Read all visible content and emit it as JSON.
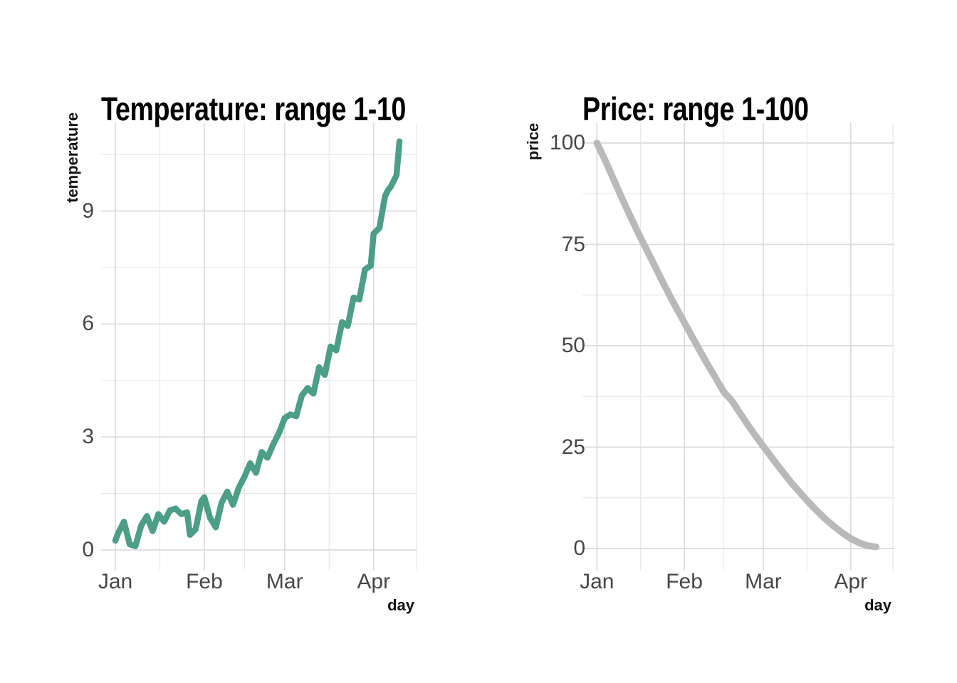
{
  "page": {
    "background": "#ffffff"
  },
  "colors": {
    "title_text": "#000000",
    "axis_title_text": "#141414",
    "tick_text": "#474747",
    "grid_major": "#dbdbdb",
    "grid_minor": "#e7e7e7",
    "temperature_line": "#4c9e87",
    "price_line": "#b9b9b9"
  },
  "chart_data": [
    {
      "type": "line",
      "title": "Temperature: range 1-10",
      "xlabel": "day",
      "ylabel": "temperature",
      "x_axis": {
        "tick_labels": [
          "Jan",
          "Feb",
          "Mar",
          "Apr"
        ],
        "tick_days": [
          1,
          32,
          60,
          91
        ],
        "minor_days": [
          16.5,
          46,
          75.5,
          106
        ],
        "domain_days": [
          -4,
          110
        ]
      },
      "y_axis": {
        "ticks": [
          0,
          3,
          6,
          9
        ],
        "minor": [
          1.5,
          4.5,
          7.5,
          10.5
        ],
        "domain": [
          -0.5,
          11.4
        ]
      },
      "grid": true,
      "legend": "none",
      "line_color": "#4c9e87",
      "line_width": 8.5,
      "series": [
        {
          "name": "temperature",
          "x": [
            1,
            2,
            4,
            6,
            8,
            10,
            12,
            14,
            16,
            18,
            20,
            22,
            24,
            26,
            27,
            29,
            31,
            32,
            34,
            36,
            38,
            40,
            42,
            44,
            46,
            48,
            50,
            52,
            54,
            56,
            58,
            60,
            62,
            64,
            66,
            68,
            70,
            72,
            74,
            76,
            78,
            80,
            82,
            84,
            86,
            88,
            90,
            91,
            93,
            95,
            96,
            97,
            98,
            99,
            100
          ],
          "y": [
            0.25,
            0.45,
            0.75,
            0.15,
            0.1,
            0.65,
            0.9,
            0.5,
            0.95,
            0.75,
            1.05,
            1.1,
            0.95,
            1.0,
            0.4,
            0.55,
            1.3,
            1.4,
            0.85,
            0.6,
            1.25,
            1.55,
            1.2,
            1.65,
            1.95,
            2.3,
            2.05,
            2.6,
            2.45,
            2.8,
            3.1,
            3.5,
            3.6,
            3.55,
            4.1,
            4.3,
            4.15,
            4.85,
            4.65,
            5.4,
            5.3,
            6.05,
            5.95,
            6.7,
            6.65,
            7.45,
            7.55,
            8.4,
            8.55,
            9.4,
            9.55,
            9.65,
            9.8,
            9.95,
            10.85
          ]
        }
      ]
    },
    {
      "type": "line",
      "title": "Price: range 1-100",
      "xlabel": "day",
      "ylabel": "price",
      "x_axis": {
        "tick_labels": [
          "Jan",
          "Feb",
          "Mar",
          "Apr"
        ],
        "tick_days": [
          1,
          32,
          60,
          91
        ],
        "minor_days": [
          16.5,
          46,
          75.5,
          106
        ],
        "domain_days": [
          -4,
          110
        ]
      },
      "y_axis": {
        "ticks": [
          0,
          25,
          50,
          75,
          100
        ],
        "minor": [
          12.5,
          37.5,
          62.5,
          87.5
        ],
        "domain": [
          -5,
          105.5
        ]
      },
      "grid": true,
      "legend": "none",
      "line_color": "#b9b9b9",
      "line_width": 9.5,
      "series": [
        {
          "name": "price",
          "x": [
            1,
            4,
            7,
            10,
            13,
            16,
            19,
            22,
            25,
            28,
            31,
            34,
            37,
            40,
            43,
            46,
            49,
            52,
            55,
            58,
            61,
            64,
            67,
            70,
            73,
            76,
            79,
            82,
            85,
            88,
            91,
            94,
            97,
            100
          ],
          "y": [
            100,
            95.6,
            90.9,
            86.2,
            81.7,
            77.3,
            73.2,
            69.0,
            64.8,
            60.8,
            57.0,
            53.2,
            49.4,
            45.7,
            42.2,
            38.6,
            36.3,
            33.1,
            30.0,
            27.1,
            24.3,
            21.5,
            18.8,
            16.2,
            13.8,
            11.5,
            9.3,
            7.3,
            5.5,
            3.9,
            2.5,
            1.4,
            0.7,
            0.4
          ]
        }
      ]
    }
  ]
}
